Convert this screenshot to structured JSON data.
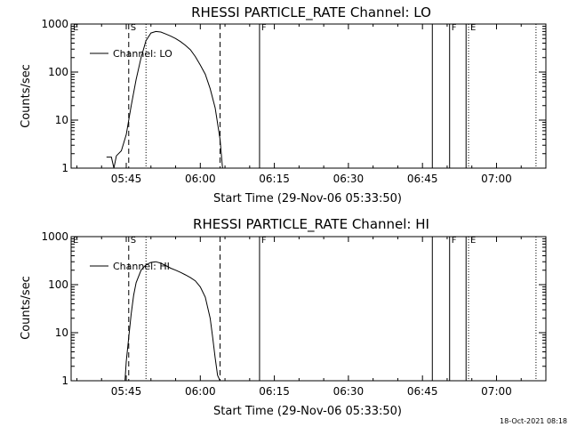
{
  "footer": {
    "timestamp": "18-Oct-2021 08:18"
  },
  "chart_data": [
    {
      "type": "line",
      "title": "RHESSI PARTICLE_RATE Channel: LO",
      "xlabel": "Start Time (29-Nov-06 05:33:50)",
      "ylabel": "Counts/sec",
      "xlim": [
        "05:33:50",
        "07:10:00"
      ],
      "ylim": [
        1,
        1000
      ],
      "y_scale": "log",
      "x_ticks": [
        "05:45",
        "06:00",
        "06:15",
        "06:30",
        "06:45",
        "07:00"
      ],
      "y_ticks": [
        1,
        10,
        100,
        1000
      ],
      "y_tick_labels": [
        "1",
        "10",
        "100",
        "1000"
      ],
      "grid": false,
      "legend": {
        "position": "top-left",
        "entries": [
          "Channel: LO"
        ]
      },
      "series": [
        {
          "name": "Channel: LO",
          "x": [
            "05:41:00",
            "05:42:00",
            "05:42:30",
            "05:43:00",
            "05:44:00",
            "05:45:00",
            "05:46:00",
            "05:47:00",
            "05:48:00",
            "05:49:00",
            "05:50:00",
            "05:51:00",
            "05:52:00",
            "05:53:00",
            "05:54:00",
            "05:55:00",
            "05:56:00",
            "05:57:00",
            "05:58:00",
            "05:59:00",
            "06:00:00",
            "06:01:00",
            "06:02:00",
            "06:03:00",
            "06:04:00",
            "06:04:30"
          ],
          "y": [
            1.7,
            1.7,
            1.0,
            1.8,
            2.3,
            5.0,
            20,
            70,
            200,
            450,
            650,
            700,
            680,
            620,
            560,
            500,
            430,
            360,
            290,
            210,
            140,
            90,
            45,
            18,
            4,
            1
          ]
        }
      ],
      "annotations": [
        {
          "label": "S",
          "x": "05:45:30",
          "style": "dashed"
        },
        {
          "label": "",
          "x": "05:49:00",
          "style": "dotted"
        },
        {
          "label": "",
          "x": "06:04:00",
          "style": "dashed"
        },
        {
          "label": "F",
          "x": "06:12:00",
          "style": "solid"
        },
        {
          "label": "",
          "x": "06:47:00",
          "style": "solid"
        },
        {
          "label": "F",
          "x": "06:50:30",
          "style": "solid"
        },
        {
          "label": "",
          "x": "06:53:50",
          "style": "solid"
        },
        {
          "label": "E",
          "x": "06:54:20",
          "style": "dotted"
        },
        {
          "label": "",
          "x": "07:08:00",
          "style": "dotted"
        },
        {
          "label": "E",
          "x": "05:33:50",
          "style": "none"
        }
      ]
    },
    {
      "type": "line",
      "title": "RHESSI PARTICLE_RATE Channel: HI",
      "xlabel": "Start Time (29-Nov-06 05:33:50)",
      "ylabel": "Counts/sec",
      "xlim": [
        "05:33:50",
        "07:10:00"
      ],
      "ylim": [
        1,
        1000
      ],
      "y_scale": "log",
      "x_ticks": [
        "05:45",
        "06:00",
        "06:15",
        "06:30",
        "06:45",
        "07:00"
      ],
      "y_ticks": [
        1,
        10,
        100,
        1000
      ],
      "y_tick_labels": [
        "1",
        "10",
        "100",
        "1000"
      ],
      "grid": false,
      "legend": {
        "position": "top-left",
        "entries": [
          "Channel: HI"
        ]
      },
      "series": [
        {
          "name": "Channel: HI",
          "x": [
            "05:44:45",
            "05:45:00",
            "05:45:30",
            "05:46:00",
            "05:46:30",
            "05:47:00",
            "05:48:00",
            "05:49:00",
            "05:50:00",
            "05:51:00",
            "05:52:00",
            "05:53:00",
            "05:54:00",
            "05:55:00",
            "05:56:00",
            "05:57:00",
            "05:58:00",
            "05:59:00",
            "06:00:00",
            "06:01:00",
            "06:02:00",
            "06:02:30",
            "06:03:00",
            "06:03:30",
            "06:04:00"
          ],
          "y": [
            1,
            2.5,
            8,
            25,
            60,
            110,
            200,
            260,
            290,
            300,
            280,
            250,
            220,
            200,
            180,
            160,
            140,
            120,
            90,
            55,
            20,
            8,
            3,
            1.3,
            1
          ]
        }
      ],
      "annotations": [
        {
          "label": "S",
          "x": "05:45:30",
          "style": "dashed"
        },
        {
          "label": "",
          "x": "05:49:00",
          "style": "dotted"
        },
        {
          "label": "",
          "x": "06:04:00",
          "style": "dashed"
        },
        {
          "label": "F",
          "x": "06:12:00",
          "style": "solid"
        },
        {
          "label": "",
          "x": "06:47:00",
          "style": "solid"
        },
        {
          "label": "F",
          "x": "06:50:30",
          "style": "solid"
        },
        {
          "label": "",
          "x": "06:53:50",
          "style": "solid"
        },
        {
          "label": "E",
          "x": "06:54:20",
          "style": "dotted"
        },
        {
          "label": "",
          "x": "07:08:00",
          "style": "dotted"
        },
        {
          "label": "E",
          "x": "05:33:50",
          "style": "none"
        }
      ]
    }
  ]
}
